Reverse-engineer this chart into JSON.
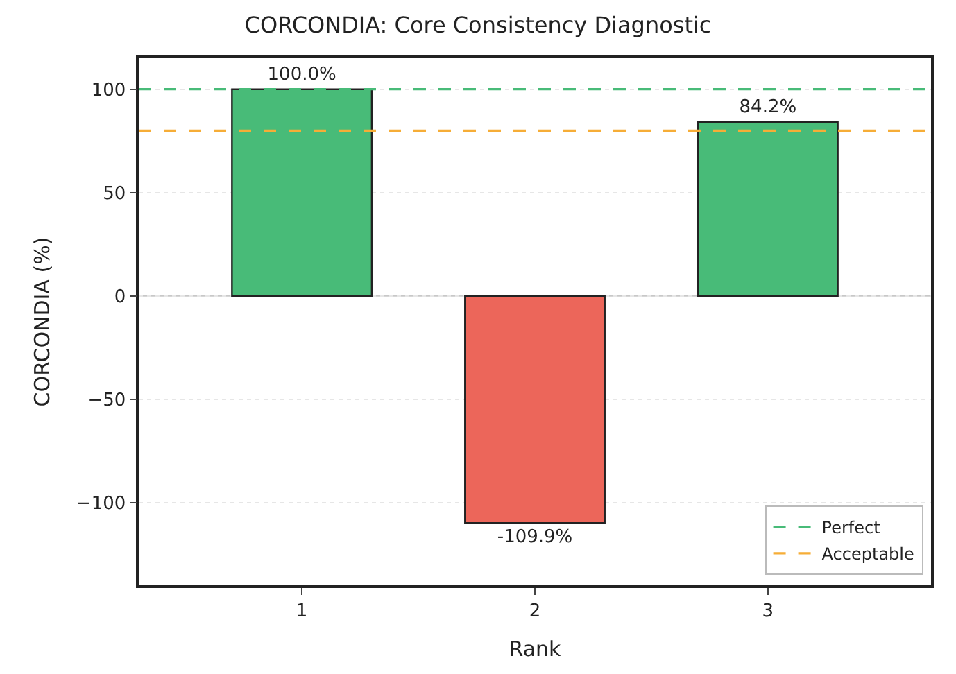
{
  "chart_data": {
    "type": "bar",
    "title": "CORCONDIA: Core Consistency Diagnostic",
    "xlabel": "Rank",
    "ylabel": "CORCONDIA (%)",
    "categories": [
      "1",
      "2",
      "3"
    ],
    "values": [
      100.0,
      -109.9,
      84.2
    ],
    "colors": [
      "#48bb78",
      "#ec665a",
      "#48bb78"
    ],
    "value_labels": [
      "100.0%",
      "-109.9%",
      "84.2%"
    ],
    "ylim": [
      -140,
      115
    ],
    "yticks": [
      -100,
      -50,
      0,
      50,
      100
    ],
    "grid": "y",
    "ref_lines": [
      {
        "axis": "y",
        "value": 0,
        "label": null,
        "color": "#c8c8c8",
        "line_style": "solid"
      },
      {
        "axis": "y",
        "value": 100,
        "label": "Perfect",
        "color": "#48bb78",
        "line_style": "dashed"
      },
      {
        "axis": "y",
        "value": 80,
        "label": "Acceptable",
        "color": "#f6ad37",
        "line_style": "dashed"
      }
    ],
    "legend": "bottom right"
  }
}
